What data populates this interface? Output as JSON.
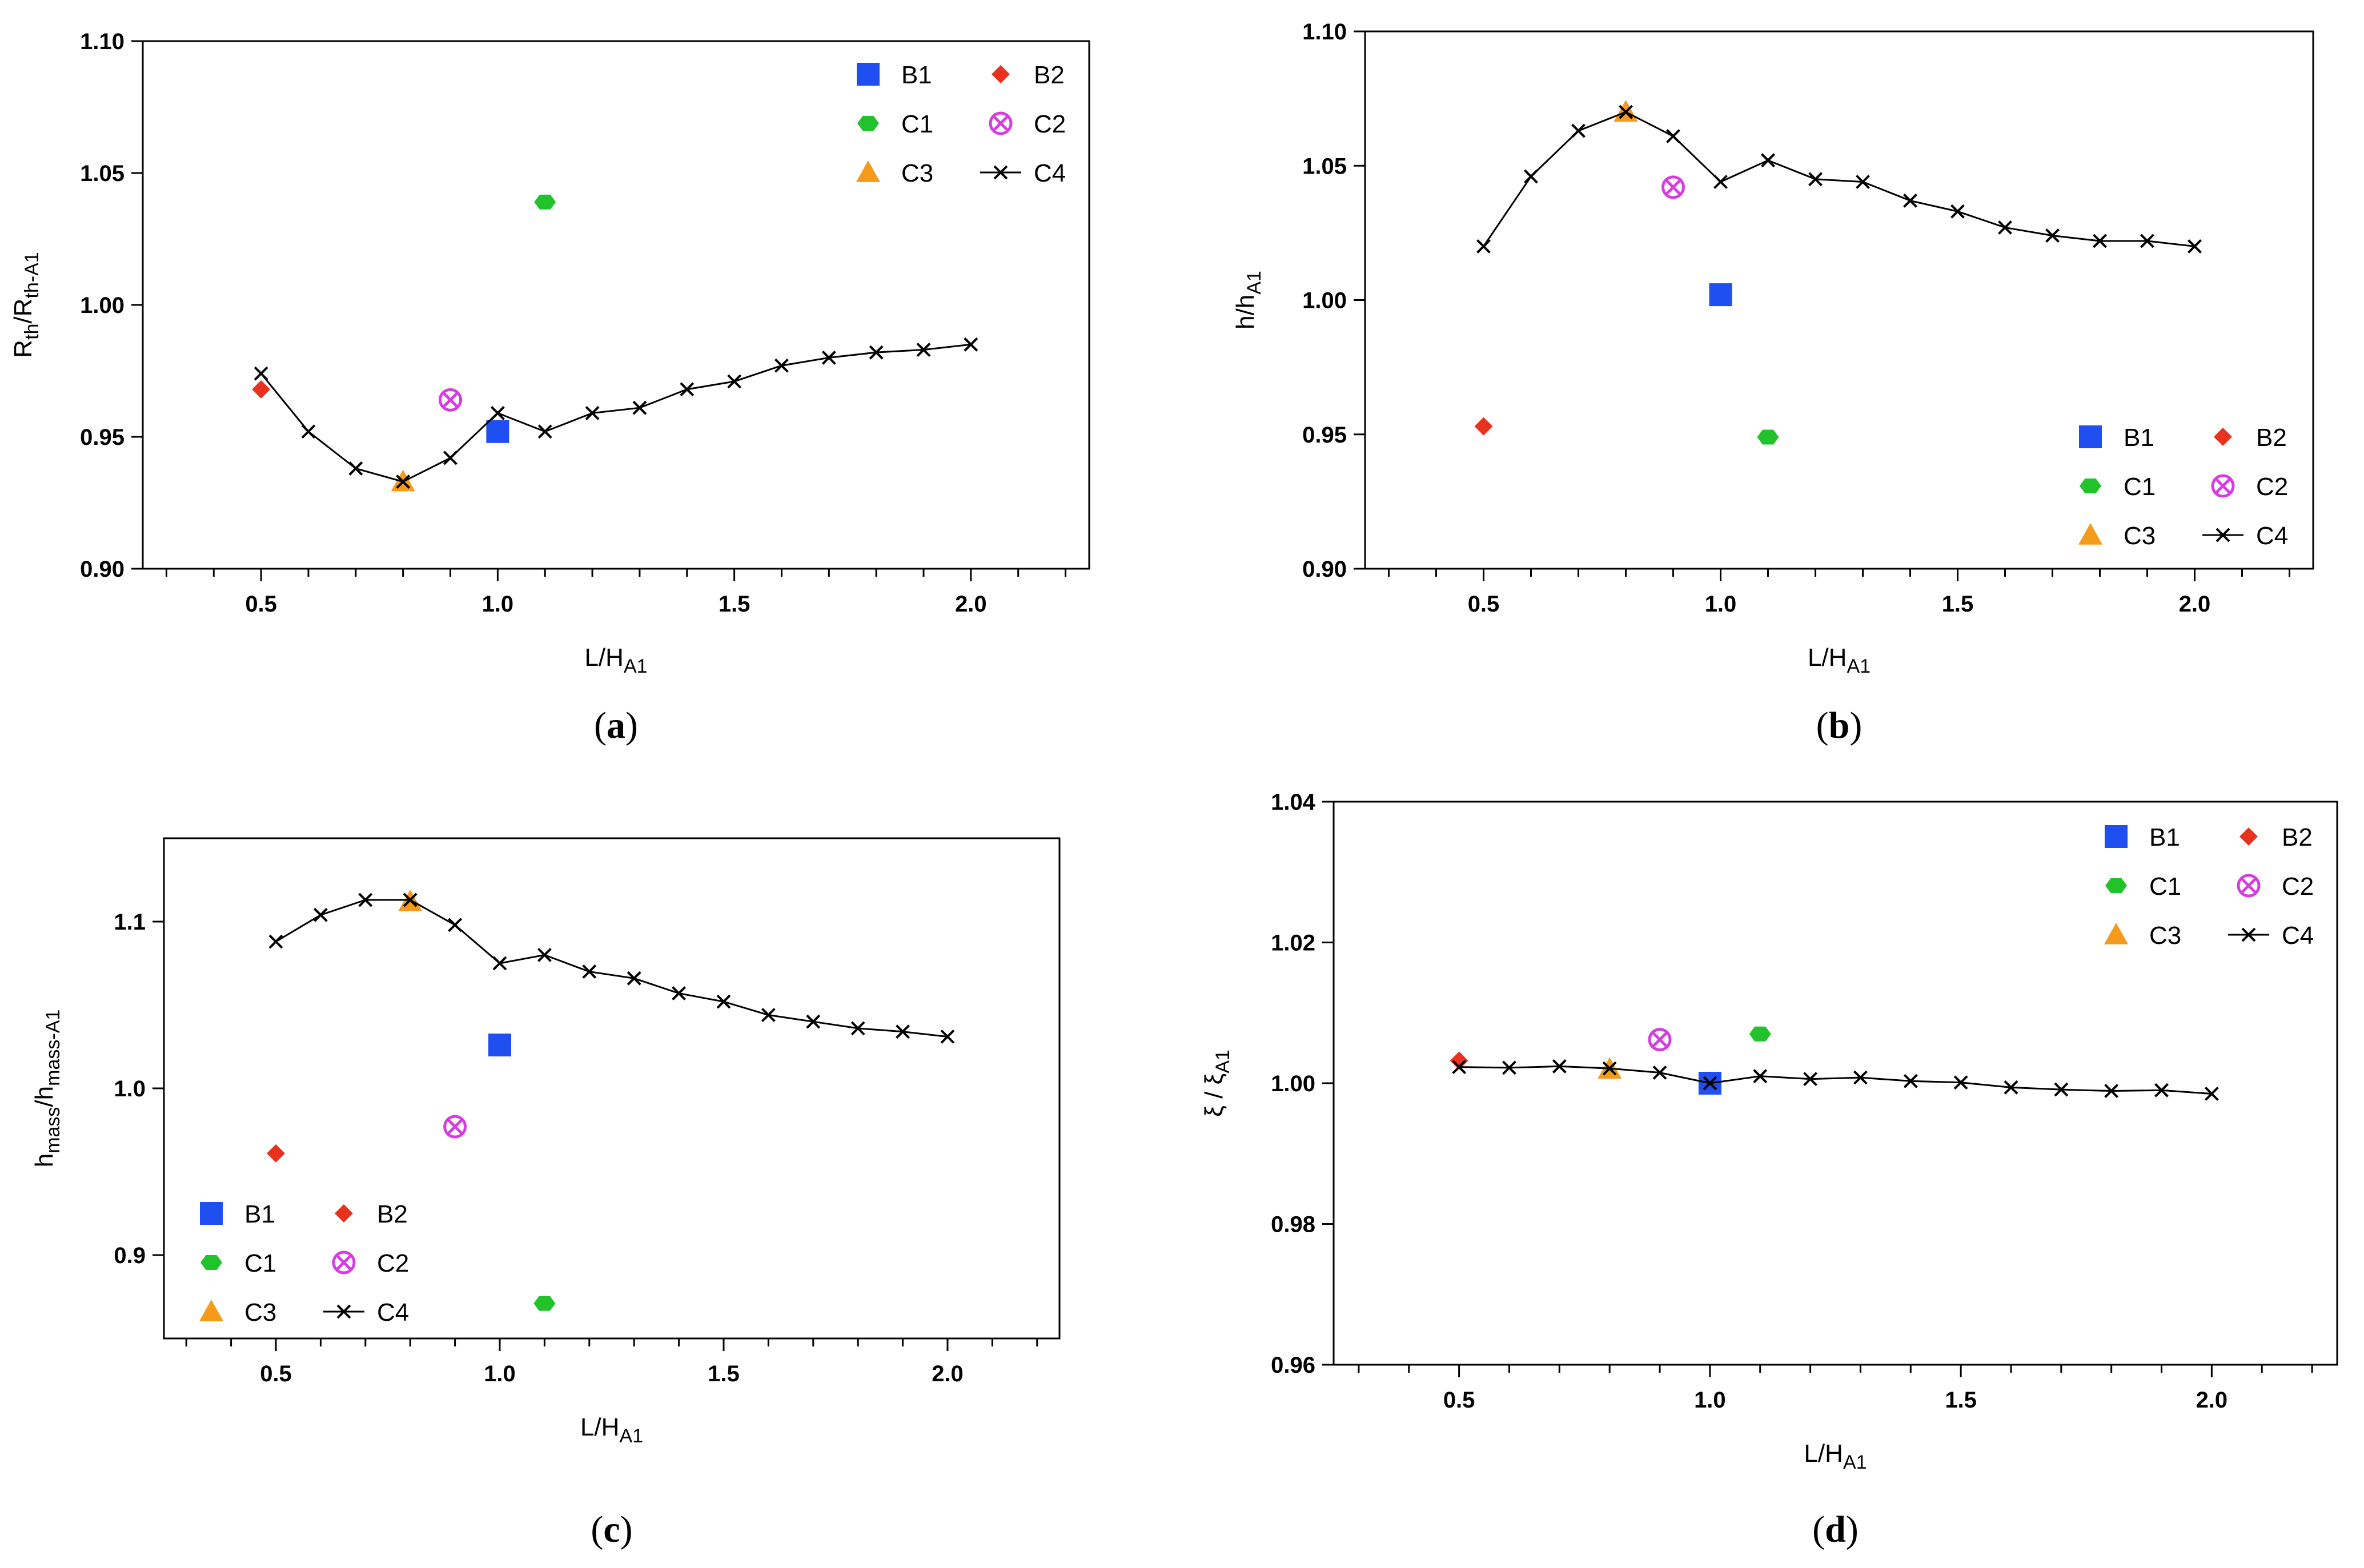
{
  "figure": {
    "colors": {
      "B1": "#1f4ff0",
      "B2": "#e8321e",
      "C1": "#22c22a",
      "C2": "#d63de0",
      "C3": "#f59a1b",
      "C4": "#000000"
    }
  },
  "chart_data": [
    {
      "type": "scatter",
      "panel_label": "a",
      "ylabel": {
        "main": "R",
        "sub1": "th",
        "mid": "/R",
        "sub2": "th-A1"
      },
      "xlabel": {
        "main": "L/H",
        "sub": "A1"
      },
      "xlim": [
        0.25,
        2.25
      ],
      "ylim": [
        0.9,
        1.1
      ],
      "xticks": [
        0.5,
        1.0,
        1.5,
        2.0
      ],
      "xtick_labels": [
        "0.5",
        "1.0",
        "1.5",
        "2.0"
      ],
      "yticks": [
        0.9,
        0.95,
        1.0,
        1.05,
        1.1
      ],
      "ytick_labels": [
        "0.90",
        "0.95",
        "1.00",
        "1.05",
        "1.10"
      ],
      "legend_position": "top-right",
      "legend": [
        "B1",
        "B2",
        "C1",
        "C2",
        "C3",
        "C4"
      ],
      "series": [
        {
          "name": "B1",
          "marker": "square",
          "x": [
            1.0
          ],
          "y": [
            0.952
          ]
        },
        {
          "name": "B2",
          "marker": "diamond",
          "x": [
            0.5
          ],
          "y": [
            0.968
          ]
        },
        {
          "name": "C1",
          "marker": "hexagon",
          "x": [
            1.1
          ],
          "y": [
            1.039
          ]
        },
        {
          "name": "C2",
          "marker": "circle-x",
          "x": [
            0.9
          ],
          "y": [
            0.964
          ]
        },
        {
          "name": "C3",
          "marker": "triangle",
          "x": [
            0.8
          ],
          "y": [
            0.933
          ]
        },
        {
          "name": "C4",
          "marker": "x-line",
          "x": [
            0.5,
            0.6,
            0.7,
            0.8,
            0.9,
            1.0,
            1.1,
            1.2,
            1.3,
            1.4,
            1.5,
            1.6,
            1.7,
            1.8,
            1.9,
            2.0
          ],
          "y": [
            0.974,
            0.952,
            0.938,
            0.933,
            0.942,
            0.959,
            0.952,
            0.959,
            0.961,
            0.968,
            0.971,
            0.977,
            0.98,
            0.982,
            0.983,
            0.985
          ]
        }
      ]
    },
    {
      "type": "scatter",
      "panel_label": "b",
      "ylabel": {
        "main": "h/h",
        "sub1": "A1",
        "mid": "",
        "sub2": ""
      },
      "xlabel": {
        "main": "L/H",
        "sub": "A1"
      },
      "xlim": [
        0.25,
        2.25
      ],
      "ylim": [
        0.9,
        1.1
      ],
      "xticks": [
        0.5,
        1.0,
        1.5,
        2.0
      ],
      "xtick_labels": [
        "0.5",
        "1.0",
        "1.5",
        "2.0"
      ],
      "yticks": [
        0.9,
        0.95,
        1.0,
        1.05,
        1.1
      ],
      "ytick_labels": [
        "0.90",
        "0.95",
        "1.00",
        "1.05",
        "1.10"
      ],
      "legend_position": "bottom-right",
      "legend": [
        "B1",
        "B2",
        "C1",
        "C2",
        "C3",
        "C4"
      ],
      "series": [
        {
          "name": "B1",
          "marker": "square",
          "x": [
            1.0
          ],
          "y": [
            1.002
          ]
        },
        {
          "name": "B2",
          "marker": "diamond",
          "x": [
            0.5
          ],
          "y": [
            0.953
          ]
        },
        {
          "name": "C1",
          "marker": "hexagon",
          "x": [
            1.1
          ],
          "y": [
            0.949
          ]
        },
        {
          "name": "C2",
          "marker": "circle-x",
          "x": [
            0.9
          ],
          "y": [
            1.042
          ]
        },
        {
          "name": "C3",
          "marker": "triangle",
          "x": [
            0.8
          ],
          "y": [
            1.07
          ]
        },
        {
          "name": "C4",
          "marker": "x-line",
          "x": [
            0.5,
            0.6,
            0.7,
            0.8,
            0.9,
            1.0,
            1.1,
            1.2,
            1.3,
            1.4,
            1.5,
            1.6,
            1.7,
            1.8,
            1.9,
            2.0
          ],
          "y": [
            1.02,
            1.046,
            1.063,
            1.07,
            1.061,
            1.044,
            1.052,
            1.045,
            1.044,
            1.037,
            1.033,
            1.027,
            1.024,
            1.022,
            1.022,
            1.02
          ]
        }
      ]
    },
    {
      "type": "scatter",
      "panel_label": "c",
      "ylabel": {
        "main": "h",
        "sub1": "mass",
        "mid": "/h",
        "sub2": "mass-A1"
      },
      "xlabel": {
        "main": "L/H",
        "sub": "A1"
      },
      "xlim": [
        0.25,
        2.25
      ],
      "ylim": [
        0.85,
        1.15
      ],
      "xticks": [
        0.5,
        1.0,
        1.5,
        2.0
      ],
      "xtick_labels": [
        "0.5",
        "1.0",
        "1.5",
        "2.0"
      ],
      "yticks": [
        0.9,
        1.0,
        1.1
      ],
      "ytick_labels": [
        "0.9",
        "1.0",
        "1.1"
      ],
      "legend_position": "bottom-left",
      "legend": [
        "B1",
        "B2",
        "C1",
        "C2",
        "C3",
        "C4"
      ],
      "series": [
        {
          "name": "B1",
          "marker": "square",
          "x": [
            1.0
          ],
          "y": [
            1.026
          ]
        },
        {
          "name": "B2",
          "marker": "diamond",
          "x": [
            0.5
          ],
          "y": [
            0.961
          ]
        },
        {
          "name": "C1",
          "marker": "hexagon",
          "x": [
            1.1
          ],
          "y": [
            0.871
          ]
        },
        {
          "name": "C2",
          "marker": "circle-x",
          "x": [
            0.9
          ],
          "y": [
            0.977
          ]
        },
        {
          "name": "C3",
          "marker": "triangle",
          "x": [
            0.8
          ],
          "y": [
            1.112
          ]
        },
        {
          "name": "C4",
          "marker": "x-line",
          "x": [
            0.5,
            0.6,
            0.7,
            0.8,
            0.9,
            1.0,
            1.1,
            1.2,
            1.3,
            1.4,
            1.5,
            1.6,
            1.7,
            1.8,
            1.9,
            2.0
          ],
          "y": [
            1.088,
            1.104,
            1.113,
            1.113,
            1.098,
            1.075,
            1.08,
            1.07,
            1.066,
            1.057,
            1.052,
            1.044,
            1.04,
            1.036,
            1.034,
            1.031
          ]
        }
      ]
    },
    {
      "type": "scatter",
      "panel_label": "d",
      "ylabel": {
        "main": "ξ / ξ",
        "sub1": "A1",
        "mid": "",
        "sub2": ""
      },
      "xlabel": {
        "main": "L/H",
        "sub": "A1"
      },
      "xlim": [
        0.25,
        2.25
      ],
      "ylim": [
        0.96,
        1.04
      ],
      "xticks": [
        0.5,
        1.0,
        1.5,
        2.0
      ],
      "xtick_labels": [
        "0.5",
        "1.0",
        "1.5",
        "2.0"
      ],
      "yticks": [
        0.96,
        0.98,
        1.0,
        1.02,
        1.04
      ],
      "ytick_labels": [
        "0.96",
        "0.98",
        "1.00",
        "1.02",
        "1.04"
      ],
      "legend_position": "top-right",
      "legend": [
        "B1",
        "B2",
        "C1",
        "C2",
        "C3",
        "C4"
      ],
      "series": [
        {
          "name": "B1",
          "marker": "square",
          "x": [
            1.0
          ],
          "y": [
            1.0
          ]
        },
        {
          "name": "B2",
          "marker": "diamond",
          "x": [
            0.5
          ],
          "y": [
            1.0032
          ]
        },
        {
          "name": "C1",
          "marker": "hexagon",
          "x": [
            1.1
          ],
          "y": [
            1.007
          ]
        },
        {
          "name": "C2",
          "marker": "circle-x",
          "x": [
            0.9
          ],
          "y": [
            1.0062
          ]
        },
        {
          "name": "C3",
          "marker": "triangle",
          "x": [
            0.8
          ],
          "y": [
            1.002
          ]
        },
        {
          "name": "C4",
          "marker": "x-line",
          "x": [
            0.5,
            0.6,
            0.7,
            0.8,
            0.9,
            1.0,
            1.1,
            1.2,
            1.3,
            1.4,
            1.5,
            1.6,
            1.7,
            1.8,
            1.9,
            2.0
          ],
          "y": [
            1.0023,
            1.0022,
            1.0024,
            1.0021,
            1.0015,
            1.0,
            1.001,
            1.0006,
            1.0008,
            1.0003,
            1.0001,
            0.9994,
            0.9991,
            0.9989,
            0.999,
            0.9985
          ]
        }
      ]
    }
  ]
}
